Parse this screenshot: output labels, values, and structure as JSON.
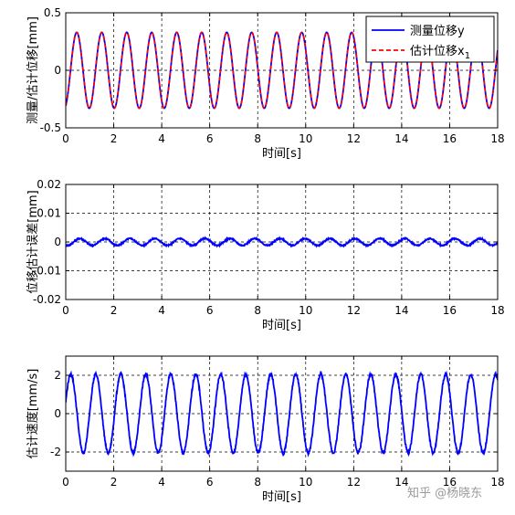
{
  "colors": {
    "measured": "#0000ff",
    "estimated": "#ff0000",
    "grid": "#000000",
    "frame": "#000000"
  },
  "watermark": "知乎 @杨晓东",
  "chart_data": [
    {
      "type": "line",
      "xlabel": "时间[s]",
      "ylabel": "测量/估计位移[mm]",
      "xlim": [
        0,
        18
      ],
      "ylim": [
        -0.5,
        0.5
      ],
      "xticks": [
        0,
        2,
        4,
        6,
        8,
        10,
        12,
        14,
        16,
        18
      ],
      "yticks": [
        -0.5,
        0,
        0.5
      ],
      "grid": true,
      "legend": "top-right",
      "series": [
        {
          "name": "测量位移y",
          "kind": "sin",
          "amplitude": 0.33,
          "frequency": 0.96,
          "phase": -1.2,
          "style": "solid",
          "color": "#0000ff"
        },
        {
          "name": "估计位移x1",
          "kind": "sin",
          "amplitude": 0.33,
          "frequency": 0.96,
          "phase": -1.2,
          "style": "dashed",
          "color": "#ff0000"
        }
      ],
      "legend_entries": [
        {
          "label": "测量位移y",
          "subscript": ""
        },
        {
          "label": "估计位移x",
          "subscript": "1"
        }
      ]
    },
    {
      "type": "line",
      "xlabel": "时间[s]",
      "ylabel": "位移估计误差[mm]",
      "xlim": [
        0,
        18
      ],
      "ylim": [
        -0.02,
        0.02
      ],
      "xticks": [
        0,
        2,
        4,
        6,
        8,
        10,
        12,
        14,
        16,
        18
      ],
      "yticks": [
        -0.02,
        -0.01,
        0,
        0.01,
        0.02
      ],
      "grid": true,
      "series": [
        {
          "name": "",
          "kind": "sin",
          "amplitude": 0.0012,
          "frequency": 0.96,
          "phase": -2.0,
          "noise": 0.0002,
          "style": "solid",
          "color": "#0000ff"
        }
      ]
    },
    {
      "type": "line",
      "xlabel": "时间[s]",
      "ylabel": "估计速度[mm/s]",
      "xlim": [
        0,
        18
      ],
      "ylim": [
        -3,
        3
      ],
      "xticks": [
        0,
        2,
        4,
        6,
        8,
        10,
        12,
        14,
        16,
        18
      ],
      "yticks": [
        -2,
        0,
        2
      ],
      "grid": true,
      "series": [
        {
          "name": "",
          "kind": "sin",
          "amplitude": 2.05,
          "frequency": 0.96,
          "phase": 0.3,
          "noise": 0.08,
          "style": "solid",
          "color": "#0000ff"
        }
      ]
    }
  ]
}
